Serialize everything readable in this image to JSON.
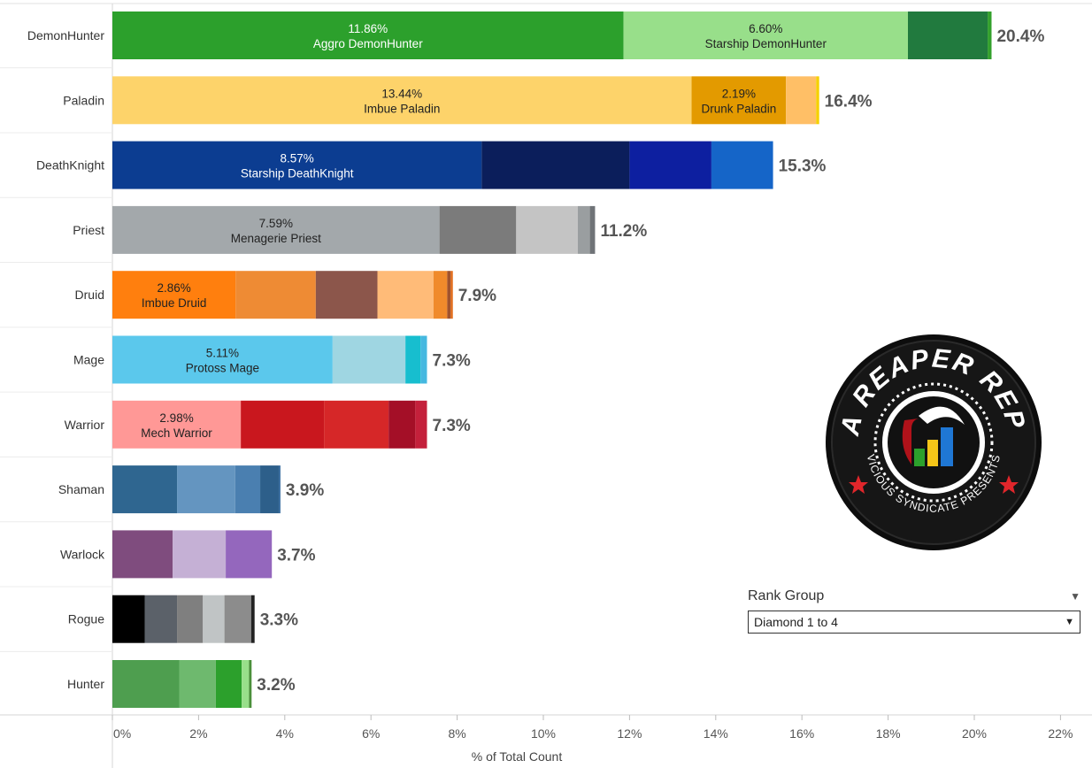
{
  "colors": {
    "DemonHunter": [
      "#2ca02c",
      "#98df8a",
      "#217a3e",
      "#33a02c"
    ],
    "Paladin": [
      "#fdd36a",
      "#e39a00",
      "#ffbf66",
      "#f5d000"
    ],
    "DeathKnight": [
      "#0c3d91",
      "#0b1e5b",
      "#0d1fa0",
      "#1565c8"
    ],
    "Priest": [
      "#a3a8ab",
      "#7b7b7b",
      "#c4c4c4",
      "#9a9ea0",
      "#6f7377"
    ],
    "Druid": [
      "#ff7f0e",
      "#ee8b34",
      "#8c564b",
      "#ffbb78",
      "#f08a2b",
      "#a0522d",
      "#e36c1a"
    ],
    "Mage": [
      "#5bc8ec",
      "#9fd6e2",
      "#17becf",
      "#45b8e0"
    ],
    "Warrior": [
      "#ff9896",
      "#c9171e",
      "#d62728",
      "#a40f27",
      "#c4203b"
    ],
    "Shaman": [
      "#2f6690",
      "#6495c0",
      "#4a7fb0",
      "#2d5f8a",
      "#3a6ea0"
    ],
    "Warlock": [
      "#7f4c7e",
      "#c5b0d5",
      "#9467bd"
    ],
    "Rogue": [
      "#000000",
      "#5b6169",
      "#7f7f7f",
      "#c0c4c5",
      "#8c8c8c",
      "#222222"
    ],
    "Hunter": [
      "#4e9e4f",
      "#6eb96e",
      "#2ca02c",
      "#98df8a",
      "#4a8f3a"
    ]
  },
  "chart_data": {
    "type": "bar",
    "orientation": "horizontal",
    "stacked": true,
    "xlabel": "% of Total Count",
    "ylabel": "",
    "xlim": [
      0,
      22
    ],
    "x_ticks": [
      "0%",
      "2%",
      "4%",
      "6%",
      "8%",
      "10%",
      "12%",
      "14%",
      "16%",
      "18%",
      "20%",
      "22%"
    ],
    "categories": [
      "DemonHunter",
      "Paladin",
      "DeathKnight",
      "Priest",
      "Druid",
      "Mage",
      "Warrior",
      "Shaman",
      "Warlock",
      "Rogue",
      "Hunter"
    ],
    "totals": [
      "20.4%",
      "16.4%",
      "15.3%",
      "11.2%",
      "7.9%",
      "7.3%",
      "7.3%",
      "3.9%",
      "3.7%",
      "3.3%",
      "3.2%"
    ],
    "rows": [
      {
        "class": "DemonHunter",
        "segments": [
          {
            "value": 11.86,
            "pct": "11.86%",
            "name": "Aggro DemonHunter",
            "text_color": "#ffffff"
          },
          {
            "value": 6.6,
            "pct": "6.60%",
            "name": "Starship DemonHunter",
            "text_color": "#222222"
          },
          {
            "value": 1.85
          },
          {
            "value": 0.09
          }
        ]
      },
      {
        "class": "Paladin",
        "segments": [
          {
            "value": 13.44,
            "pct": "13.44%",
            "name": "Imbue Paladin",
            "text_color": "#222222"
          },
          {
            "value": 2.19,
            "pct": "2.19%",
            "name": "Drunk Paladin",
            "text_color": "#222222"
          },
          {
            "value": 0.7
          },
          {
            "value": 0.07
          }
        ]
      },
      {
        "class": "DeathKnight",
        "segments": [
          {
            "value": 8.57,
            "pct": "8.57%",
            "name": "Starship DeathKnight",
            "text_color": "#ffffff"
          },
          {
            "value": 3.43
          },
          {
            "value": 1.9
          },
          {
            "value": 1.43
          }
        ]
      },
      {
        "class": "Priest",
        "segments": [
          {
            "value": 7.59,
            "pct": "7.59%",
            "name": "Menagerie Priest",
            "text_color": "#222222"
          },
          {
            "value": 1.78
          },
          {
            "value": 1.43
          },
          {
            "value": 0.28
          },
          {
            "value": 0.12
          }
        ]
      },
      {
        "class": "Druid",
        "segments": [
          {
            "value": 2.86,
            "pct": "2.86%",
            "name": "Imbue Druid",
            "text_color": "#222222"
          },
          {
            "value": 1.86
          },
          {
            "value": 1.43
          },
          {
            "value": 1.3
          },
          {
            "value": 0.32
          },
          {
            "value": 0.08
          },
          {
            "value": 0.05
          }
        ]
      },
      {
        "class": "Mage",
        "segments": [
          {
            "value": 5.11,
            "pct": "5.11%",
            "name": "Protoss Mage",
            "text_color": "#222222"
          },
          {
            "value": 1.69
          },
          {
            "value": 0.35
          },
          {
            "value": 0.15
          }
        ]
      },
      {
        "class": "Warrior",
        "segments": [
          {
            "value": 2.98,
            "pct": "2.98%",
            "name": "Mech Warrior",
            "text_color": "#222222"
          },
          {
            "value": 1.93
          },
          {
            "value": 1.5
          },
          {
            "value": 0.62
          },
          {
            "value": 0.27
          }
        ]
      },
      {
        "class": "Shaman",
        "segments": [
          {
            "value": 1.5
          },
          {
            "value": 1.35
          },
          {
            "value": 0.58
          },
          {
            "value": 0.43
          },
          {
            "value": 0.04
          }
        ]
      },
      {
        "class": "Warlock",
        "segments": [
          {
            "value": 1.4
          },
          {
            "value": 1.23
          },
          {
            "value": 1.07
          }
        ]
      },
      {
        "class": "Rogue",
        "segments": [
          {
            "value": 0.75
          },
          {
            "value": 0.75
          },
          {
            "value": 0.6
          },
          {
            "value": 0.5
          },
          {
            "value": 0.62
          },
          {
            "value": 0.08
          }
        ]
      },
      {
        "class": "Hunter",
        "segments": [
          {
            "value": 1.55
          },
          {
            "value": 0.85
          },
          {
            "value": 0.6
          },
          {
            "value": 0.17
          },
          {
            "value": 0.06
          }
        ]
      }
    ]
  },
  "rank_group": {
    "title": "Rank Group",
    "selected": "Diamond 1 to 4"
  },
  "logo": {
    "title": "DATA REAPER REPORT",
    "subtitle": "VICIOUS SYNDICATE PRESENTS"
  }
}
